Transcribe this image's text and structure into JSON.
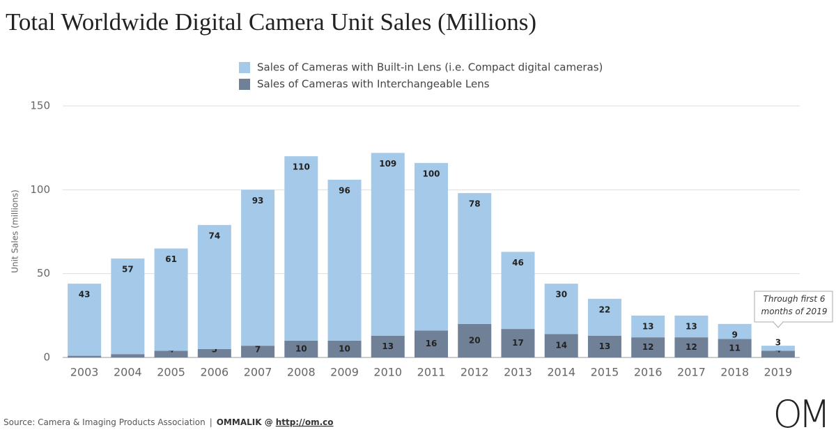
{
  "chart_data": {
    "type": "stacked_bar",
    "title": "Total Worldwide Digital Camera Unit Sales (Millions)",
    "y_label": "Unit Sales (millions)",
    "categories": [
      "2003",
      "2004",
      "2005",
      "2006",
      "2007",
      "2008",
      "2009",
      "2010",
      "2011",
      "2012",
      "2013",
      "2014",
      "2015",
      "2016",
      "2017",
      "2018",
      "2019"
    ],
    "series": [
      {
        "name": "Sales of Cameras with Interchangeable Lens",
        "color": "#6f8097",
        "values": [
          1,
          2,
          4,
          5,
          7,
          10,
          10,
          13,
          16,
          20,
          17,
          14,
          13,
          12,
          12,
          11,
          4
        ]
      },
      {
        "name": "Sales of Cameras with Built-in Lens (i.e. Compact digital cameras)",
        "color": "#a5c9e9",
        "values": [
          43,
          57,
          61,
          74,
          93,
          110,
          96,
          109,
          100,
          78,
          46,
          30,
          22,
          13,
          13,
          9,
          3
        ]
      }
    ],
    "ylim": [
      0,
      150
    ],
    "yticks": [
      0,
      50,
      100,
      150
    ],
    "grid": true,
    "annotation": "Through first 6 months of 2019",
    "source": "Source: Camera & Imaging Products Association",
    "separator": "|",
    "credit": "OMMALIK @",
    "url": "http://om.co",
    "logo": "OM"
  }
}
